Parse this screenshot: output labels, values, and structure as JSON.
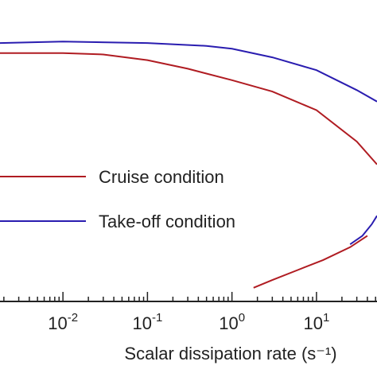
{
  "chart_data": {
    "type": "line",
    "xlabel": "Scalar dissipation rate (s⁻¹)",
    "xscale": "log",
    "xlim": [
      0.0018,
      52
    ],
    "ylim": [
      0,
      1
    ],
    "x_ticks": [
      {
        "base": "10",
        "exp": "-2",
        "value": 0.01
      },
      {
        "base": "10",
        "exp": "-1",
        "value": 0.1
      },
      {
        "base": "10",
        "exp": "0",
        "value": 1
      },
      {
        "base": "10",
        "exp": "1",
        "value": 10
      }
    ],
    "legend_position": "center-left",
    "series": [
      {
        "name": "Cruise condition",
        "color": "#b01c22",
        "upper": [
          [
            0.0018,
            0.87
          ],
          [
            0.01,
            0.87
          ],
          [
            0.03,
            0.865
          ],
          [
            0.1,
            0.845
          ],
          [
            0.3,
            0.815
          ],
          [
            1,
            0.775
          ],
          [
            3,
            0.735
          ],
          [
            10,
            0.67
          ],
          [
            30,
            0.56
          ],
          [
            52,
            0.48
          ]
        ],
        "lower": [
          [
            1.8,
            0.048
          ],
          [
            3,
            0.075
          ],
          [
            6,
            0.11
          ],
          [
            12,
            0.145
          ],
          [
            25,
            0.19
          ],
          [
            40,
            0.23
          ]
        ]
      },
      {
        "name": "Take-off condition",
        "color": "#2a1db0",
        "upper": [
          [
            0.0018,
            0.905
          ],
          [
            0.01,
            0.91
          ],
          [
            0.1,
            0.905
          ],
          [
            0.5,
            0.895
          ],
          [
            1,
            0.885
          ],
          [
            3,
            0.855
          ],
          [
            10,
            0.81
          ],
          [
            30,
            0.74
          ],
          [
            52,
            0.7
          ]
        ],
        "lower": [
          [
            25,
            0.2
          ],
          [
            35,
            0.23
          ],
          [
            45,
            0.27
          ],
          [
            52,
            0.3
          ]
        ]
      }
    ]
  }
}
